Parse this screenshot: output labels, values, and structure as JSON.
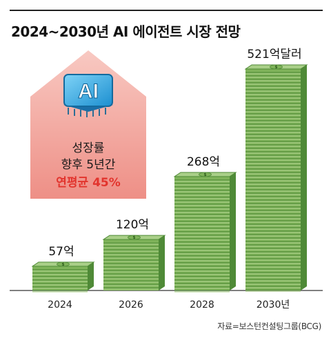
{
  "title": "2024~2030년 AI 에이전트 시장 전망",
  "source": "자료=보스턴컨설팅그룹(BCG)",
  "callout": {
    "chip_text": "AI",
    "line1": "성장률",
    "line2": "향후 5년간",
    "line3": "연평균 45%"
  },
  "colors": {
    "callout_fill": "#f2a49c",
    "highlight_text": "#e2342d",
    "money_light": "#a9cf88",
    "money_mid": "#7fb35a",
    "money_dark": "#4f8a37",
    "chip": "#3bb0e8"
  },
  "chart_data": {
    "type": "bar",
    "categories": [
      "2024",
      "2026",
      "2028",
      "2030년"
    ],
    "values": [
      57,
      120,
      268,
      521
    ],
    "data_labels": [
      "57억",
      "120억",
      "268억",
      "521억달러"
    ],
    "unit": "억달러",
    "ylim": [
      0,
      521
    ],
    "grid": false,
    "legend": "none"
  }
}
